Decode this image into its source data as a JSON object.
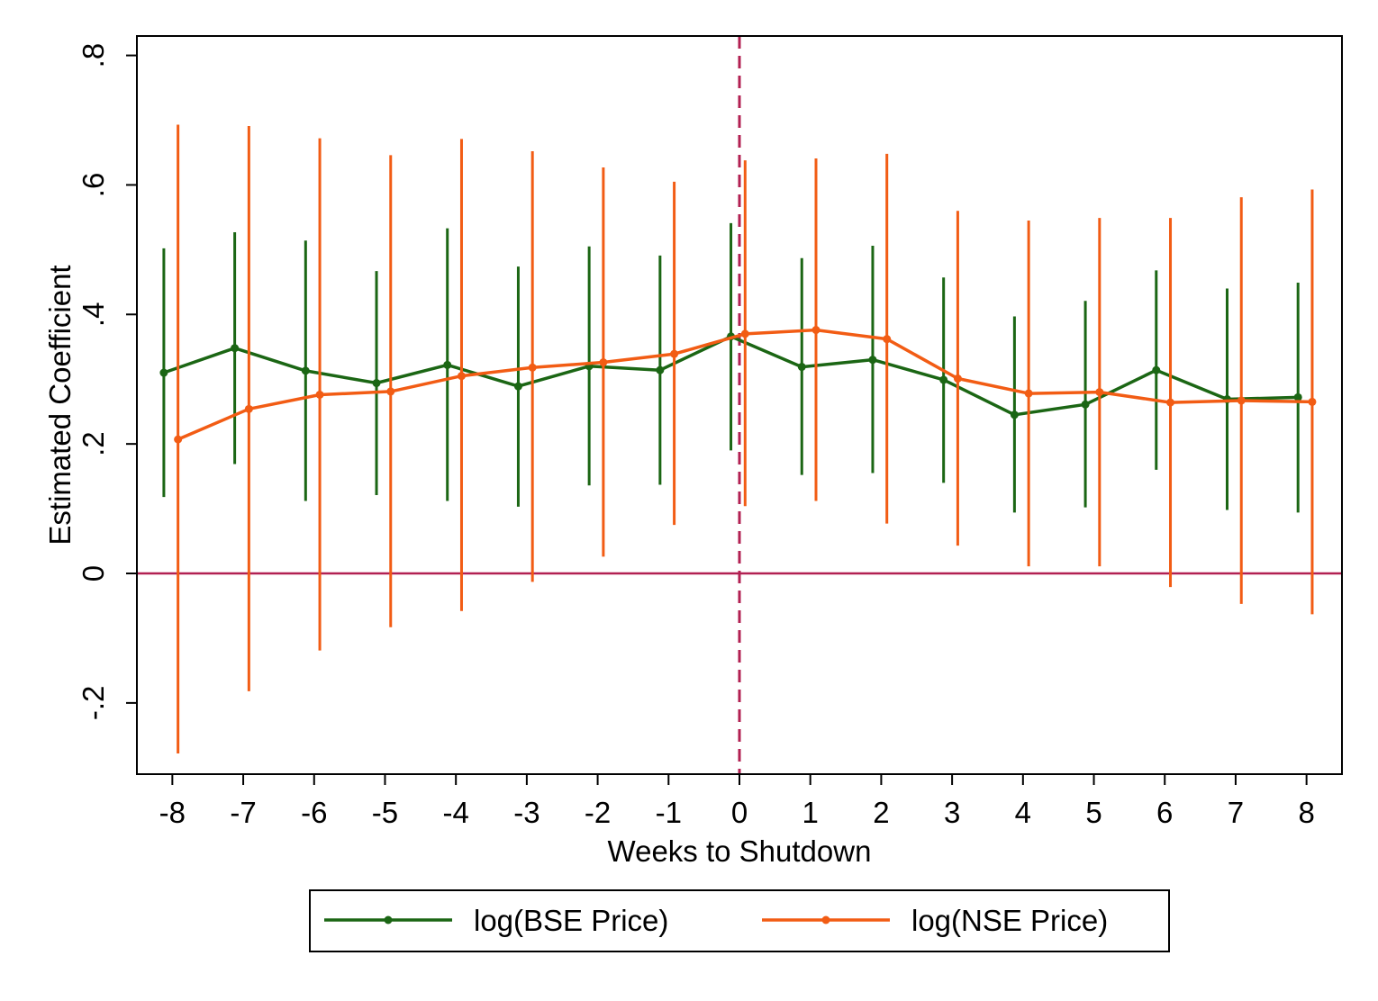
{
  "chart_data": {
    "type": "line",
    "xlabel": "Weeks to Shutdown",
    "ylabel": "Estimated Coefficient",
    "xlim": [
      -8.5,
      8.5
    ],
    "ylim": [
      -0.31,
      0.83
    ],
    "x_ticks": [
      -8,
      -7,
      -6,
      -5,
      -4,
      -3,
      -2,
      -1,
      0,
      1,
      2,
      3,
      4,
      5,
      6,
      7,
      8
    ],
    "x_tick_labels": [
      "-8",
      "-7",
      "-6",
      "-5",
      "-4",
      "-3",
      "-2",
      "-1",
      "0",
      "1",
      "2",
      "3",
      "4",
      "5",
      "6",
      "7",
      "8"
    ],
    "y_ticks": [
      -0.2,
      0,
      0.2,
      0.4,
      0.6,
      0.8
    ],
    "y_tick_labels": [
      "-.2",
      "0",
      ".2",
      ".4",
      ".6",
      ".8"
    ],
    "reference_lines": {
      "horizontal_y": 0,
      "vertical_x": 0,
      "color": "#B22052"
    },
    "grid": false,
    "legend_position": "bottom",
    "series": [
      {
        "name": "log(BSE Price)",
        "color": "#1B6614",
        "x": [
          -8,
          -7,
          -6,
          -5,
          -4,
          -3,
          -2,
          -1,
          0,
          1,
          2,
          3,
          4,
          5,
          6,
          7,
          8
        ],
        "y": [
          0.31,
          0.348,
          0.313,
          0.294,
          0.322,
          0.289,
          0.32,
          0.314,
          0.366,
          0.319,
          0.33,
          0.299,
          0.245,
          0.261,
          0.314,
          0.269,
          0.272
        ],
        "lower": [
          0.118,
          0.169,
          0.112,
          0.121,
          0.112,
          0.103,
          0.136,
          0.137,
          0.19,
          0.152,
          0.155,
          0.14,
          0.094,
          0.102,
          0.16,
          0.098,
          0.094
        ],
        "upper": [
          0.502,
          0.527,
          0.514,
          0.467,
          0.533,
          0.474,
          0.505,
          0.491,
          0.541,
          0.487,
          0.506,
          0.457,
          0.397,
          0.421,
          0.468,
          0.44,
          0.449
        ]
      },
      {
        "name": "log(NSE Price)",
        "color": "#F25C14",
        "x": [
          -8,
          -7,
          -6,
          -5,
          -4,
          -3,
          -2,
          -1,
          0,
          1,
          2,
          3,
          4,
          5,
          6,
          7,
          8
        ],
        "y": [
          0.207,
          0.254,
          0.276,
          0.281,
          0.305,
          0.318,
          0.326,
          0.339,
          0.37,
          0.376,
          0.362,
          0.301,
          0.278,
          0.28,
          0.264,
          0.267,
          0.265
        ],
        "lower": [
          -0.278,
          -0.182,
          -0.119,
          -0.083,
          -0.058,
          -0.013,
          0.026,
          0.075,
          0.104,
          0.112,
          0.077,
          0.043,
          0.011,
          0.011,
          -0.021,
          -0.047,
          -0.063
        ],
        "upper": [
          0.693,
          0.691,
          0.672,
          0.646,
          0.671,
          0.652,
          0.627,
          0.605,
          0.638,
          0.641,
          0.648,
          0.56,
          0.545,
          0.549,
          0.549,
          0.581,
          0.593
        ]
      }
    ]
  }
}
